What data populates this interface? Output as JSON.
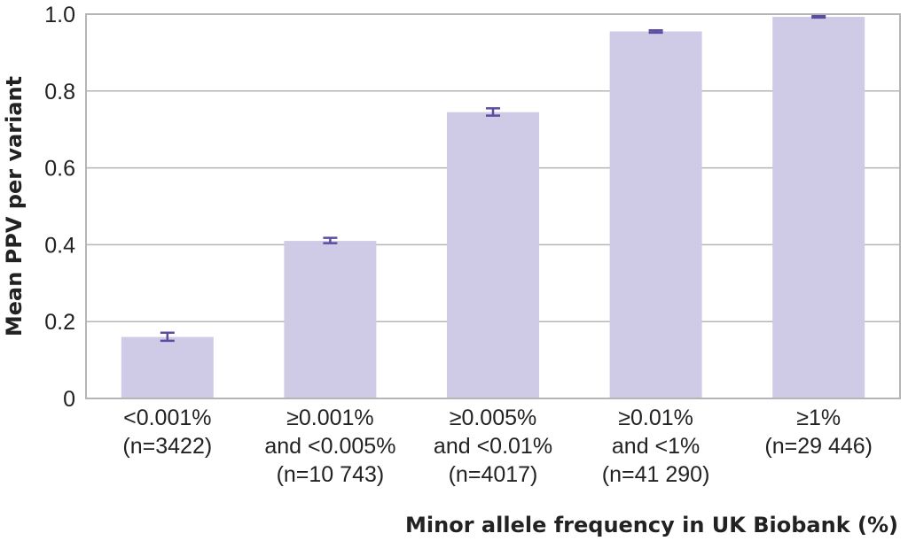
{
  "chart_data": {
    "type": "bar",
    "categories": [
      [
        "<0.001%",
        "(n=3422)"
      ],
      [
        "≥0.001%",
        "and <0.005%",
        "(n=10 743)"
      ],
      [
        "≥0.005%",
        "and <0.01%",
        "(n=4017)"
      ],
      [
        "≥0.01%",
        "and <1%",
        "(n=41 290)"
      ],
      [
        "≥1%",
        "(n=29 446)"
      ]
    ],
    "values": [
      0.16,
      0.41,
      0.745,
      0.955,
      0.993
    ],
    "error_bars": [
      [
        0.15,
        0.171
      ],
      [
        0.404,
        0.418
      ],
      [
        0.736,
        0.755
      ],
      [
        0.952,
        0.958
      ],
      [
        0.991,
        0.995
      ]
    ],
    "xlabel": "Minor allele frequency in UK Biobank (%)",
    "ylabel": "Mean PPV per variant",
    "ylim": [
      0,
      1.0
    ],
    "yticks": [
      "0",
      "0.2",
      "0.4",
      "0.6",
      "0.8",
      "1.0"
    ],
    "grid": true,
    "colors": {
      "bar": "#cfcbe7",
      "error_bar": "#5a4ca1",
      "grid": "#b5b5b5",
      "text": "#222222"
    }
  }
}
